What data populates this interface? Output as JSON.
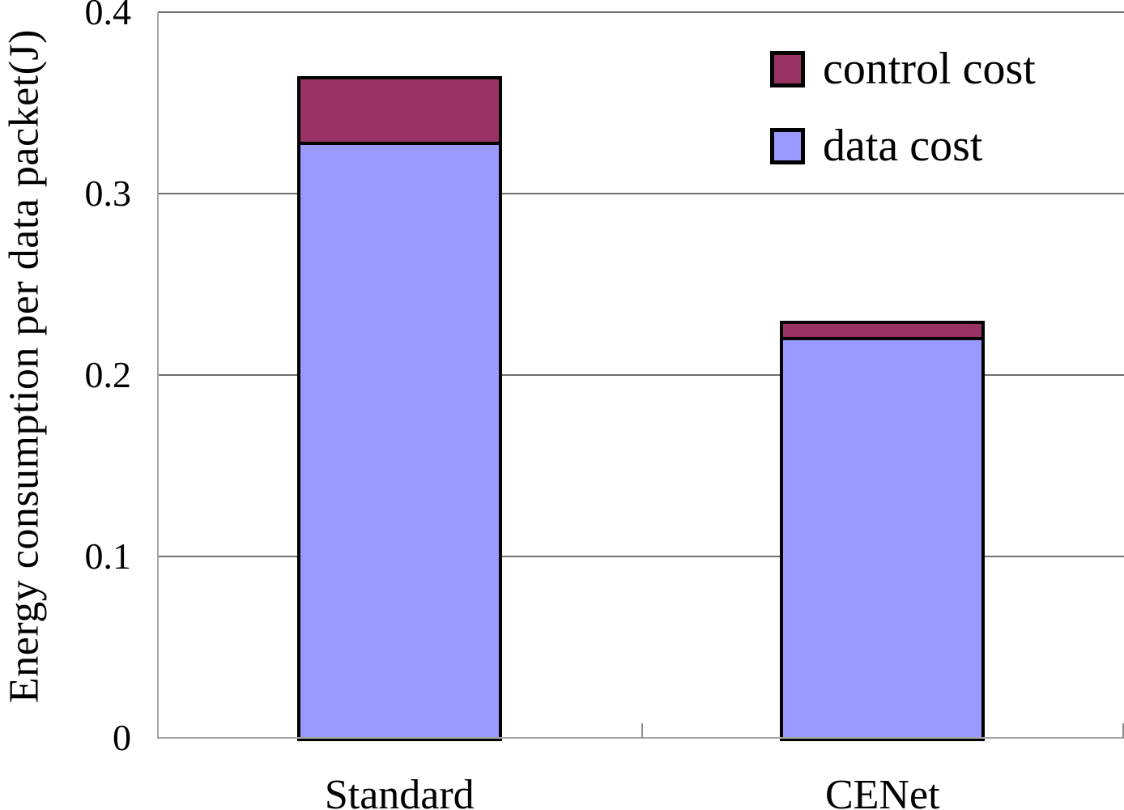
{
  "figure": {
    "background": "#ffffff"
  },
  "chart_data": {
    "type": "bar",
    "stacked": true,
    "title": "",
    "xlabel": "",
    "ylabel": "Energy consumption per data packet(J)",
    "categories": [
      "Standard",
      "CENet"
    ],
    "series": [
      {
        "name": "data cost",
        "color": "#9999FF",
        "values": [
          0.327,
          0.219
        ]
      },
      {
        "name": "control cost",
        "color": "#993366",
        "values": [
          0.036,
          0.009
        ]
      }
    ],
    "stack_totals": [
      0.363,
      0.228
    ],
    "ylim": [
      0,
      0.4
    ],
    "yticks": [
      {
        "value": 0.0,
        "label": "0"
      },
      {
        "value": 0.1,
        "label": "0.1"
      },
      {
        "value": 0.2,
        "label": "0.2"
      },
      {
        "value": 0.3,
        "label": "0.3"
      },
      {
        "value": 0.4,
        "label": "0.4"
      }
    ],
    "grid": true,
    "legend": {
      "position": "top-right",
      "items": [
        {
          "label": "control cost",
          "color": "#993366"
        },
        {
          "label": "data cost",
          "color": "#9999FF"
        }
      ]
    },
    "colors": {
      "bar_border": "#000000",
      "axis_line": "#a6a6a6",
      "gridline": "#6f6f6f",
      "text": "#000000"
    }
  }
}
